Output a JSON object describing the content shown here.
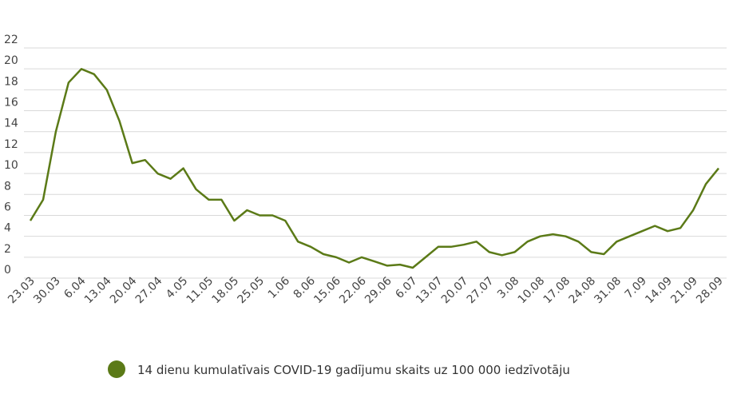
{
  "chart_data": {
    "type": "line",
    "categories": [
      "23.03",
      null,
      "30.03",
      null,
      "6.04",
      null,
      "13.04",
      null,
      "20.04",
      null,
      "27.04",
      null,
      "4.05",
      null,
      "11.05",
      null,
      "18.05",
      null,
      "25.05",
      null,
      "1.06",
      null,
      "8.06",
      null,
      "15.06",
      null,
      "22.06",
      null,
      "29.06",
      null,
      "6.07",
      null,
      "13.07",
      null,
      "20.07",
      null,
      "27.07",
      null,
      "3.08",
      null,
      "10.08",
      null,
      "17.08",
      null,
      "24.08",
      null,
      "31.08",
      null,
      "7.09",
      null,
      "14.09",
      null,
      "21.09",
      null,
      "28.09"
    ],
    "series": [
      {
        "name": "14 dienu kumulatīvais COVID-19 gadījumu skaits uz 100 000 iedzīvotāju",
        "color": "#5b7a17",
        "values": [
          4.5,
          6.5,
          13,
          17.7,
          19,
          18.5,
          17,
          14,
          10,
          10.3,
          9,
          8.5,
          9.5,
          7.5,
          6.5,
          6.5,
          4.5,
          5.5,
          5,
          5,
          4.5,
          2.5,
          2,
          1.3,
          1,
          0.5,
          1,
          0.6,
          0.2,
          0.3,
          0,
          1,
          2,
          2,
          2.2,
          2.5,
          1.5,
          1.2,
          1.5,
          2.5,
          3,
          3.2,
          3,
          2.5,
          1.5,
          1.3,
          2.5,
          3,
          3.5,
          4,
          3.5,
          3.8,
          5.5,
          8,
          9.5
        ]
      }
    ],
    "ylim": [
      0,
      22
    ],
    "yticks": [
      0,
      2,
      4,
      6,
      8,
      10,
      12,
      14,
      16,
      18,
      20,
      22
    ],
    "grid": true
  }
}
